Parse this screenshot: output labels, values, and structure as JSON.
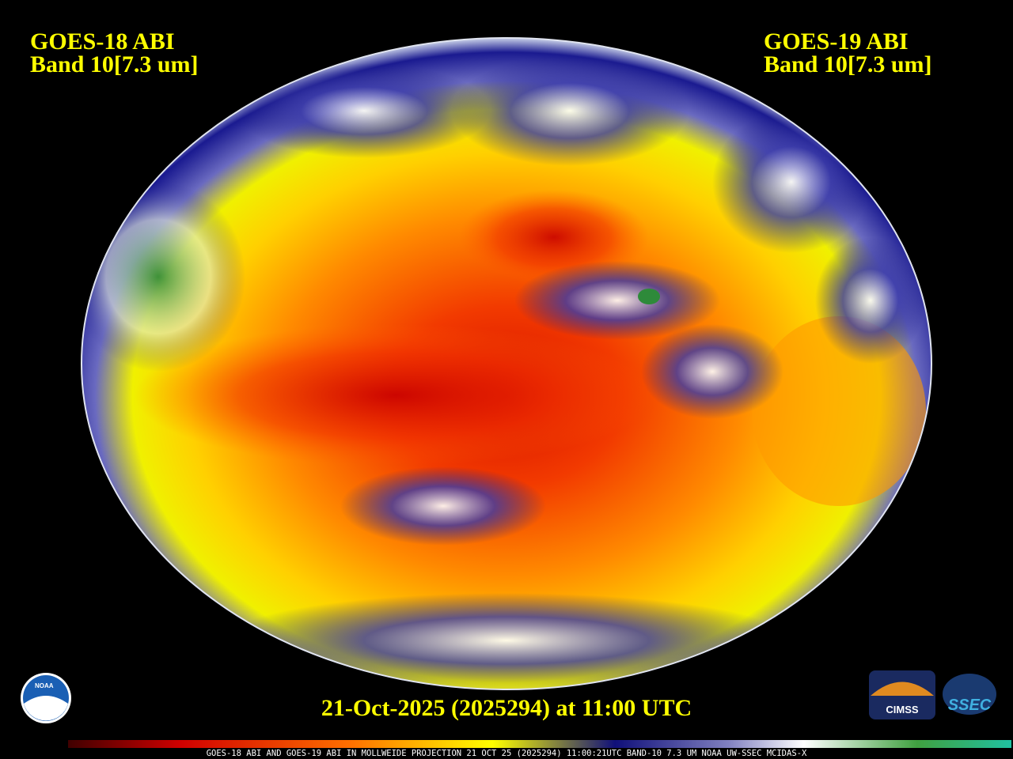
{
  "header": {
    "left": {
      "line1": "GOES-18 ABI",
      "line2": "Band 10[7.3 um]"
    },
    "right": {
      "line1": "GOES-19 ABI",
      "line2": "Band 10[7.3 um]"
    }
  },
  "timestamp": "21-Oct-2025 (2025294) at 11:00 UTC",
  "footer": "GOES-18 ABI AND GOES-19 ABI IN MOLLWEIDE PROJECTION 21 OCT 25 (2025294) 11:00:21UTC BAND-10 7.3 UM NOAA UW-SSEC MCIDAS-X",
  "logos": {
    "noaa": "NOAA",
    "cimss": "CIMSS",
    "ssec": "SSEC"
  }
}
